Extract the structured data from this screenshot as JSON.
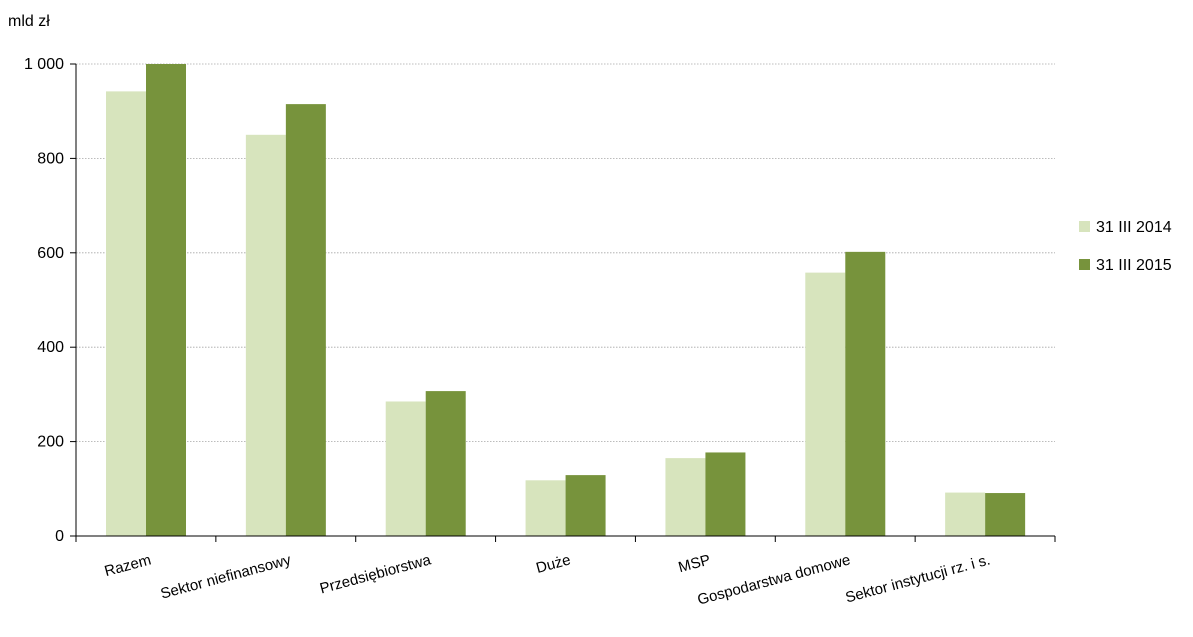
{
  "chart_data": {
    "type": "bar",
    "unit_label": "mld zł",
    "categories": [
      "Razem",
      "Sektor niefinansowy",
      "Przedsiębiorstwa",
      "Duże",
      "MSP",
      "Gospodarstwa domowe",
      "Sektor instytucji rz. i s."
    ],
    "series": [
      {
        "name": "31 III 2014",
        "color": "#d7e4bd",
        "values": [
          942,
          850,
          285,
          118,
          165,
          558,
          92
        ]
      },
      {
        "name": "31 III 2015",
        "color": "#77933c",
        "values": [
          1000,
          915,
          307,
          129,
          177,
          602,
          91
        ]
      }
    ],
    "ylim": [
      0,
      1000
    ],
    "yticks": [
      0,
      200,
      400,
      600,
      800,
      1000
    ],
    "ytick_labels": [
      "0",
      "200",
      "400",
      "600",
      "800",
      "1 000"
    ],
    "grid": true,
    "legend_position": "right"
  }
}
